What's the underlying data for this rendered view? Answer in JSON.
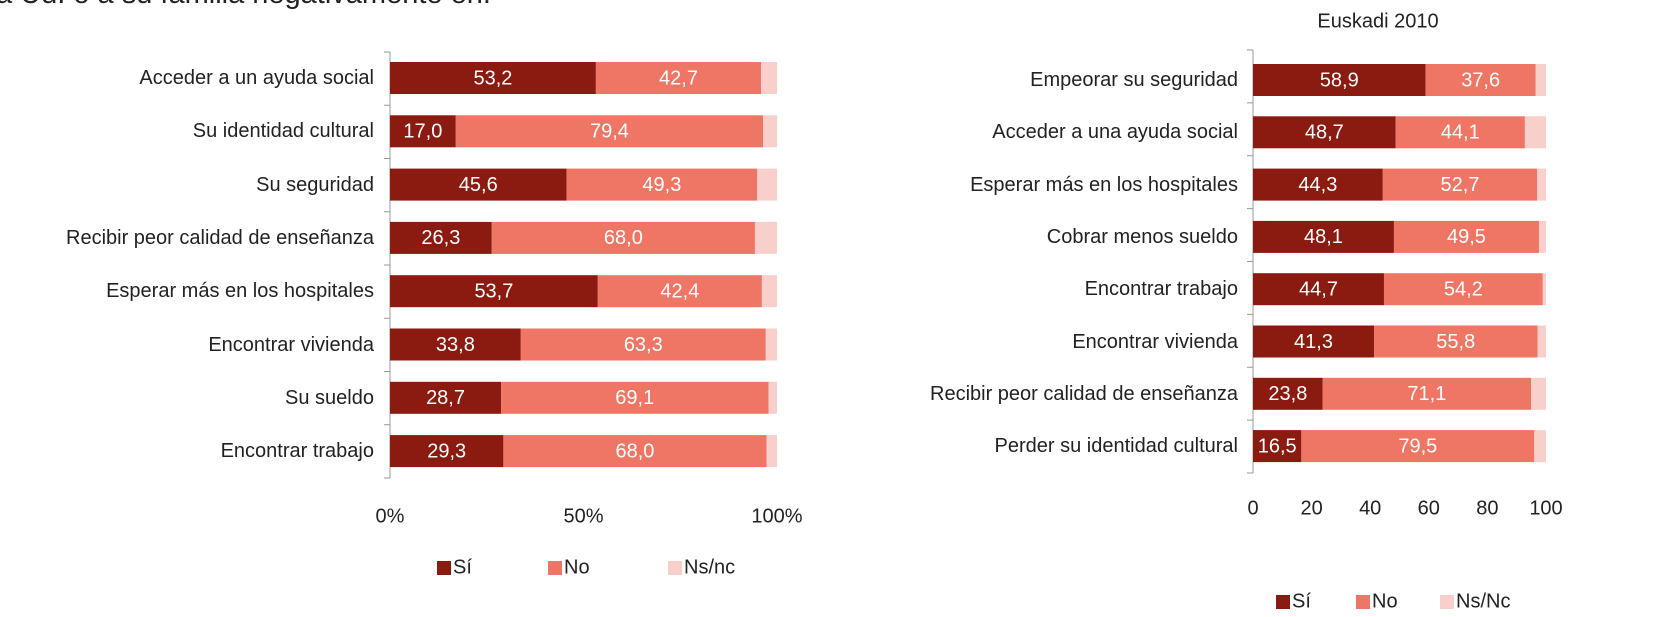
{
  "caption": "a Ud. o a su familia negativamente en:",
  "chart_data": [
    {
      "type": "stacked-bar-horizontal",
      "categories": [
        "Acceder a un ayuda social",
        "Su identidad cultural",
        "Su seguridad",
        "Recibir peor calidad de enseñanza",
        "Esperar más en los hospitales",
        "Encontrar vivienda",
        "Su sueldo",
        "Encontrar trabajo"
      ],
      "series": [
        {
          "name": "Sí",
          "color": "#8b1a10",
          "values": [
            53.2,
            17.0,
            45.6,
            26.3,
            53.7,
            33.8,
            28.7,
            29.3
          ],
          "value_labels": [
            "53,2",
            "17,0",
            "45,6",
            "26,3",
            "53,7",
            "33,8",
            "28,7",
            "29,3"
          ]
        },
        {
          "name": "No",
          "color": "#ef7565",
          "values": [
            42.7,
            79.4,
            49.3,
            68.0,
            42.4,
            63.3,
            69.1,
            68.0
          ],
          "value_labels": [
            "42,7",
            "79,4",
            "49,3",
            "68,0",
            "42,4",
            "63,3",
            "69,1",
            "68,0"
          ]
        },
        {
          "name": "Ns/nc",
          "color": "#f9cfcb",
          "values": [
            4.1,
            3.6,
            5.1,
            5.7,
            3.9,
            2.9,
            2.2,
            2.7
          ]
        }
      ],
      "xlim": [
        0,
        100
      ],
      "xticks": [
        {
          "value": 0,
          "label": "0%"
        },
        {
          "value": 50,
          "label": "50%"
        },
        {
          "value": 100,
          "label": "100%"
        }
      ],
      "legend": "bottom"
    },
    {
      "type": "stacked-bar-horizontal",
      "title": "Euskadi 2010",
      "categories": [
        "Empeorar su seguridad",
        "Acceder a una ayuda social",
        "Esperar más en los hospitales",
        "Cobrar menos sueldo",
        "Encontrar trabajo",
        "Encontrar vivienda",
        "Recibir peor calidad de enseñanza",
        "Perder su identidad cultural"
      ],
      "series": [
        {
          "name": "Sí",
          "color": "#8b1a10",
          "values": [
            58.9,
            48.7,
            44.3,
            48.1,
            44.7,
            41.3,
            23.8,
            16.5
          ],
          "value_labels": [
            "58,9",
            "48,7",
            "44,3",
            "48,1",
            "44,7",
            "41,3",
            "23,8",
            "16,5"
          ]
        },
        {
          "name": "No",
          "color": "#ef7565",
          "values": [
            37.6,
            44.1,
            52.7,
            49.5,
            54.2,
            55.8,
            71.1,
            79.5
          ],
          "value_labels": [
            "37,6",
            "44,1",
            "52,7",
            "49,5",
            "54,2",
            "55,8",
            "71,1",
            "79,5"
          ]
        },
        {
          "name": "Ns/Nc",
          "color": "#f9cfcb",
          "values": [
            3.5,
            7.2,
            3.0,
            2.4,
            1.1,
            2.9,
            5.1,
            4.0
          ]
        }
      ],
      "xlim": [
        0,
        100
      ],
      "xticks": [
        0,
        20,
        40,
        60,
        80,
        100
      ],
      "legend": "bottom"
    }
  ]
}
